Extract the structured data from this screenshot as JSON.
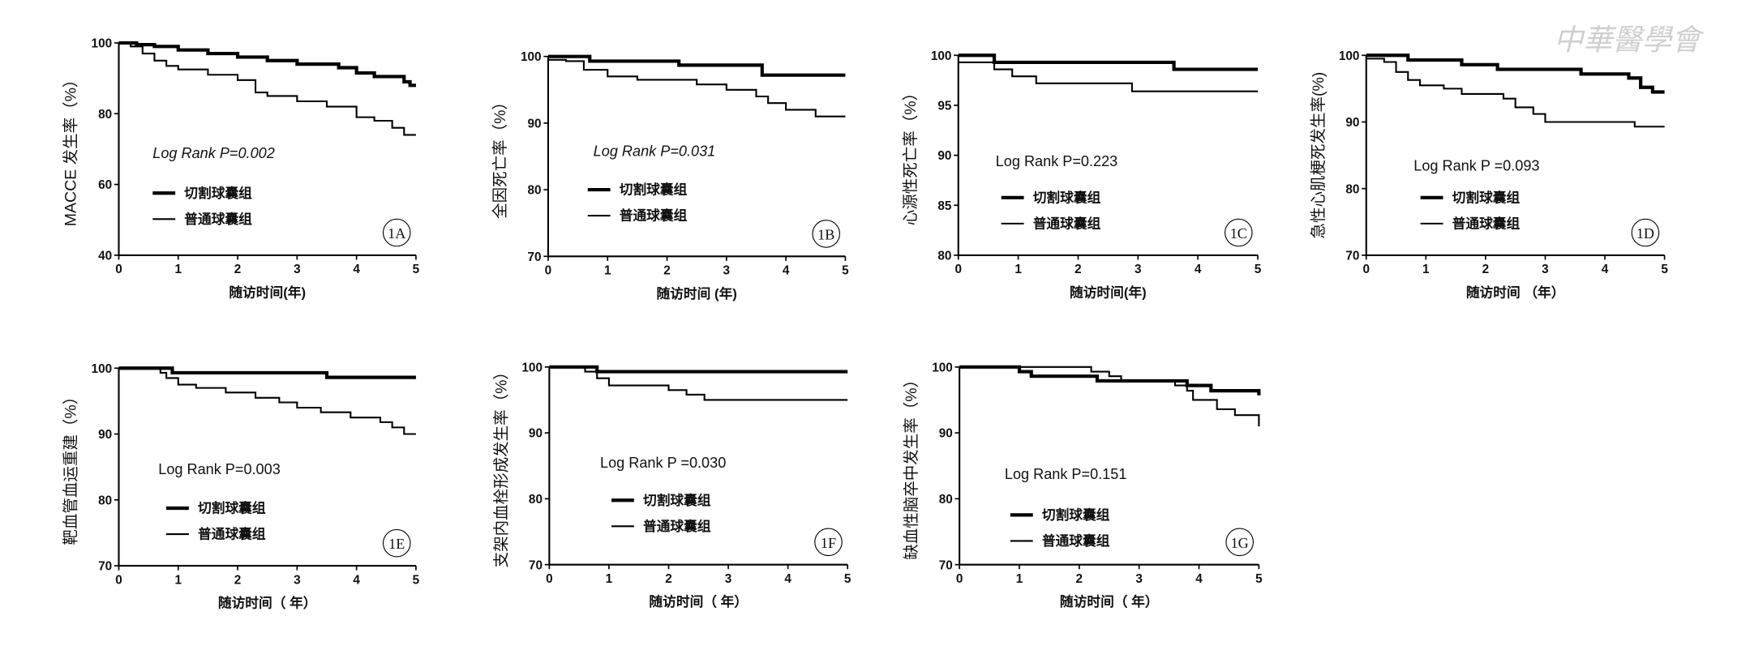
{
  "watermark": "中華醫學會",
  "chart_data": [
    {
      "type": "line",
      "panel": "1A",
      "ylabel": "MACCE 发生率（%）",
      "xlabel": "随访时间(年)",
      "annotation": "Log Rank P=0.002",
      "annotation_italic": true,
      "xlim": [
        0,
        5
      ],
      "xticks": [
        0,
        1,
        2,
        3,
        4,
        5
      ],
      "ylim": [
        40,
        100
      ],
      "yticks": [
        40,
        60,
        80,
        100
      ],
      "series": [
        {
          "name": "切割球囊组",
          "color": "#000000",
          "x": [
            0,
            0.3,
            0.6,
            1,
            1.5,
            2,
            2.5,
            3,
            3.7,
            4,
            4.3,
            4.8,
            4.9,
            5
          ],
          "values": [
            100,
            99.5,
            99,
            98,
            97,
            96,
            95,
            94,
            93,
            91.5,
            90.5,
            89,
            88,
            88
          ]
        },
        {
          "name": "普通球囊组",
          "color": "#000000",
          "x": [
            0,
            0.2,
            0.4,
            0.6,
            0.8,
            1,
            1.5,
            2,
            2.3,
            2.5,
            3,
            3.5,
            4,
            4.3,
            4.6,
            4.8,
            5
          ],
          "values": [
            100,
            99,
            97,
            95,
            93.5,
            92.5,
            91,
            89.5,
            86,
            85,
            83.5,
            82,
            79,
            78,
            76,
            74,
            74
          ]
        }
      ]
    },
    {
      "type": "line",
      "panel": "1B",
      "ylabel": "全因死亡率（%）",
      "xlabel": "随访时间 (年)",
      "annotation": "Log Rank P=0.031",
      "annotation_italic": true,
      "xlim": [
        0,
        5
      ],
      "xticks": [
        0,
        1,
        2,
        3,
        4,
        5
      ],
      "ylim": [
        70,
        100
      ],
      "yticks": [
        70,
        80,
        90,
        100
      ],
      "series": [
        {
          "name": "切割球囊组",
          "color": "#000000",
          "x": [
            0,
            0.7,
            2.2,
            3.6,
            5
          ],
          "values": [
            100,
            99.3,
            98.7,
            97.2,
            97.2
          ]
        },
        {
          "name": "普通球囊组",
          "color": "#000000",
          "x": [
            0,
            0.3,
            0.6,
            1,
            1.5,
            2.5,
            3,
            3.5,
            3.7,
            4,
            4.5,
            5
          ],
          "values": [
            99.5,
            99.3,
            98,
            97,
            96.5,
            95.8,
            95,
            94,
            93,
            92,
            91,
            91
          ]
        }
      ]
    },
    {
      "type": "line",
      "panel": "1C",
      "ylabel": "心源性死亡率（%）",
      "xlabel": "随访时间(年)",
      "annotation": "Log Rank P=0.223",
      "annotation_italic": false,
      "xlim": [
        0,
        5
      ],
      "xticks": [
        0,
        1,
        2,
        3,
        4,
        5
      ],
      "ylim": [
        80,
        100
      ],
      "yticks": [
        80,
        85,
        90,
        95,
        100
      ],
      "series": [
        {
          "name": "切割球囊组",
          "color": "#000000",
          "x": [
            0,
            0.6,
            3.6,
            5
          ],
          "values": [
            100,
            99.3,
            98.6,
            98.6
          ]
        },
        {
          "name": "普通球囊组",
          "color": "#000000",
          "x": [
            0,
            0.6,
            0.9,
            1.3,
            2.9,
            5
          ],
          "values": [
            99.3,
            98.6,
            97.9,
            97.2,
            96.4,
            96.4
          ]
        }
      ]
    },
    {
      "type": "line",
      "panel": "1D",
      "ylabel": "急性心肌梗死发生率(%)",
      "xlabel": "随访时间 （年）",
      "annotation": "Log Rank P =0.093",
      "annotation_italic": false,
      "xlim": [
        0,
        5
      ],
      "xticks": [
        0,
        1,
        2,
        3,
        4,
        5
      ],
      "ylim": [
        70,
        100
      ],
      "yticks": [
        70,
        80,
        90,
        100
      ],
      "series": [
        {
          "name": "切割球囊组",
          "color": "#000000",
          "x": [
            0,
            0.7,
            1.6,
            2.2,
            3.6,
            4.4,
            4.6,
            4.8,
            5
          ],
          "values": [
            100,
            99.3,
            98.6,
            97.9,
            97.2,
            96.6,
            95.2,
            94.5,
            94.5
          ]
        },
        {
          "name": "普通球囊组",
          "color": "#000000",
          "x": [
            0,
            0.3,
            0.5,
            0.7,
            0.9,
            1.3,
            1.6,
            2.3,
            2.5,
            2.8,
            3,
            4.5,
            5
          ],
          "values": [
            99.5,
            99,
            97.5,
            96.3,
            95.5,
            95,
            94.2,
            93.5,
            92.2,
            91.2,
            90,
            89.3,
            89.3
          ]
        }
      ]
    },
    {
      "type": "line",
      "panel": "1E",
      "ylabel": "靶血管血运重建（%）",
      "xlabel": "随访时间（ 年）",
      "annotation": "Log Rank P=0.003",
      "annotation_italic": false,
      "xlim": [
        0,
        5
      ],
      "xticks": [
        0,
        1,
        2,
        3,
        4,
        5
      ],
      "ylim": [
        70,
        100
      ],
      "yticks": [
        70,
        80,
        90,
        100
      ],
      "series": [
        {
          "name": "切割球囊组",
          "color": "#000000",
          "x": [
            0,
            0.9,
            3.5,
            5
          ],
          "values": [
            100,
            99.3,
            98.6,
            98.6
          ]
        },
        {
          "name": "普通球囊组",
          "color": "#000000",
          "x": [
            0,
            0.7,
            0.8,
            1,
            1.3,
            1.8,
            2.3,
            2.7,
            3,
            3.4,
            3.9,
            4.4,
            4.6,
            4.8,
            5
          ],
          "values": [
            100,
            99.3,
            98.5,
            97.5,
            97,
            96.3,
            95.5,
            94.8,
            94,
            93.3,
            92.5,
            91.8,
            91,
            90,
            90
          ]
        }
      ]
    },
    {
      "type": "line",
      "panel": "1F",
      "ylabel": "支架内血栓形成发生率（%）",
      "xlabel": "随访时间（ 年）",
      "annotation": "Log Rank P =0.030",
      "annotation_italic": false,
      "xlim": [
        0,
        5
      ],
      "xticks": [
        0,
        1,
        2,
        3,
        4,
        5
      ],
      "ylim": [
        70,
        100
      ],
      "yticks": [
        70,
        80,
        90,
        100
      ],
      "series": [
        {
          "name": "切割球囊组",
          "color": "#000000",
          "x": [
            0,
            0.8,
            5
          ],
          "values": [
            100,
            99.3,
            99.3
          ]
        },
        {
          "name": "普通球囊组",
          "color": "#000000",
          "x": [
            0,
            0.6,
            0.8,
            1,
            2,
            2.3,
            2.6,
            5
          ],
          "values": [
            100,
            99.3,
            98.3,
            97.2,
            96.5,
            95.8,
            95,
            95
          ]
        }
      ]
    },
    {
      "type": "line",
      "panel": "1G",
      "ylabel": "缺血性脑卒中发生率（%）",
      "xlabel": "随访时间（ 年）",
      "annotation": "Log Rank P=0.151",
      "annotation_italic": false,
      "xlim": [
        0,
        5
      ],
      "xticks": [
        0,
        1,
        2,
        3,
        4,
        5
      ],
      "ylim": [
        70,
        100
      ],
      "yticks": [
        70,
        80,
        90,
        100
      ],
      "series": [
        {
          "name": "切割球囊组",
          "color": "#000000",
          "x": [
            0,
            1,
            1.2,
            2.3,
            3.8,
            4.2,
            4.9,
            5
          ],
          "values": [
            100,
            99.3,
            98.6,
            97.9,
            97.2,
            96.4,
            96.4,
            95.7
          ]
        },
        {
          "name": "普通球囊组",
          "color": "#000000",
          "x": [
            0,
            2.2,
            2.5,
            2.7,
            3.6,
            3.8,
            3.9,
            4.3,
            4.6,
            4.9,
            5
          ],
          "values": [
            100,
            99.3,
            98.6,
            97.9,
            97.2,
            96.4,
            95,
            93.6,
            92.7,
            92.7,
            91
          ]
        }
      ]
    }
  ]
}
